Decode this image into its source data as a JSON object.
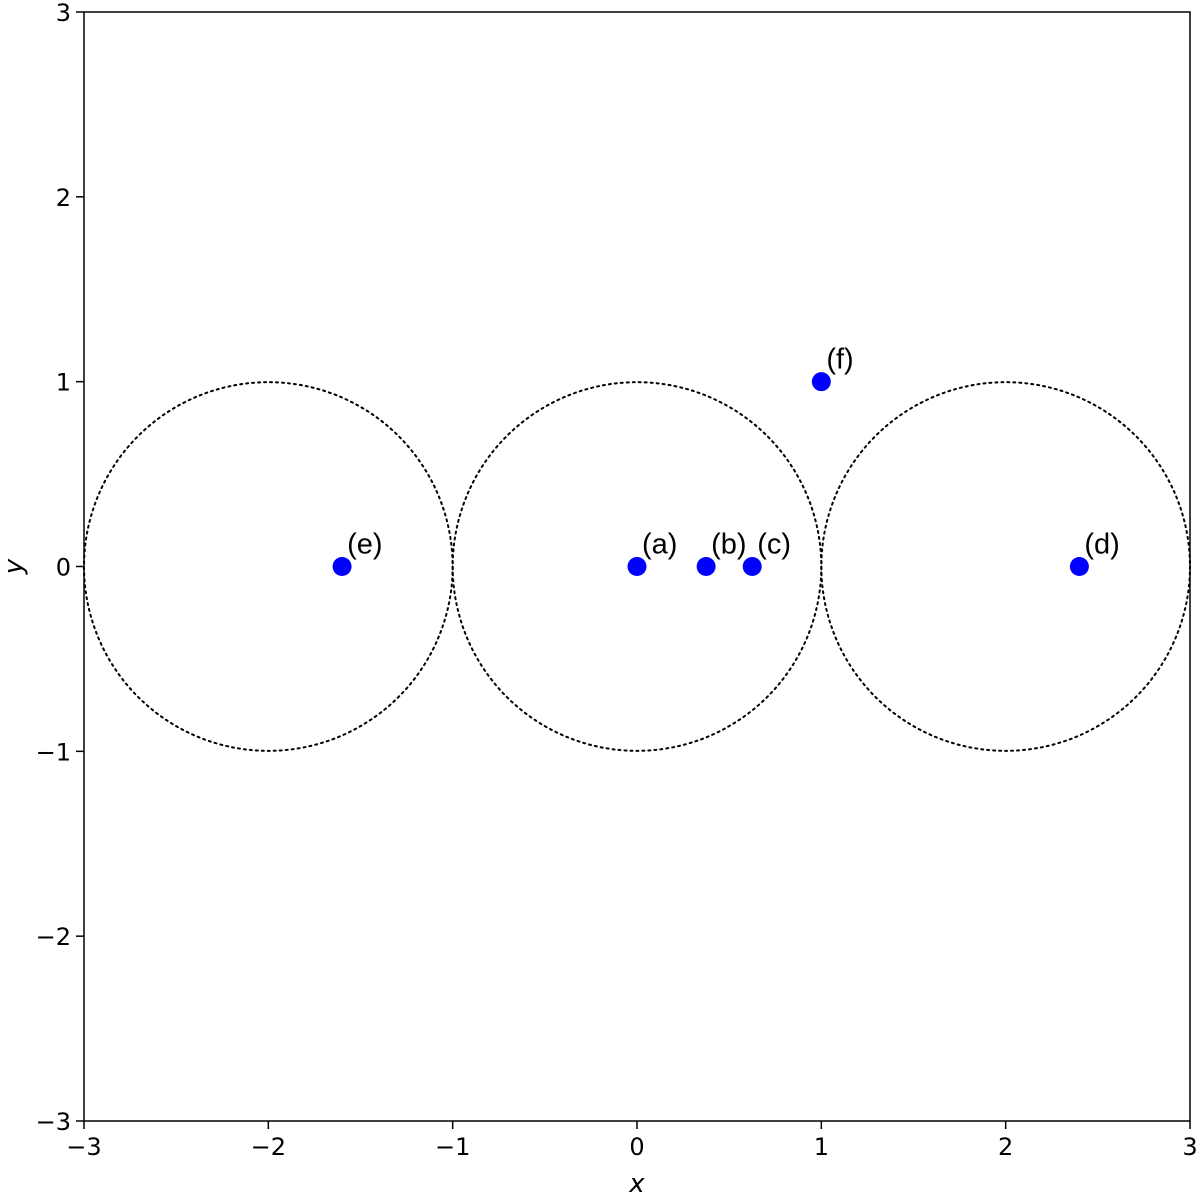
{
  "chart_data": {
    "type": "scatter",
    "xlabel": "x",
    "ylabel": "y",
    "xlim": [
      -3,
      3
    ],
    "ylim": [
      -3,
      3
    ],
    "xticks": [
      -3,
      -2,
      -1,
      0,
      1,
      2,
      3
    ],
    "yticks": [
      -3,
      -2,
      -1,
      0,
      1,
      2,
      3
    ],
    "tick_labels": {
      "x": [
        "−3",
        "−2",
        "−1",
        "0",
        "1",
        "2",
        "3"
      ],
      "y": [
        "−3",
        "−2",
        "−1",
        "0",
        "1",
        "2",
        "3"
      ]
    },
    "grid": false,
    "legend": "none",
    "marker_color": "#0000ff",
    "circle_color": "#000000",
    "circles": [
      {
        "cx": -2,
        "cy": 0,
        "r": 1,
        "style": "dotted"
      },
      {
        "cx": 0,
        "cy": 0,
        "r": 1,
        "style": "dotted"
      },
      {
        "cx": 2,
        "cy": 0,
        "r": 1,
        "style": "dotted"
      }
    ],
    "points": [
      {
        "label": "(a)",
        "x": 0,
        "y": 0
      },
      {
        "label": "(b)",
        "x": 0.375,
        "y": 0
      },
      {
        "label": "(c)",
        "x": 0.625,
        "y": 0
      },
      {
        "label": "(d)",
        "x": 2.4,
        "y": 0
      },
      {
        "label": "(e)",
        "x": -1.6,
        "y": 0
      },
      {
        "label": "(f)",
        "x": 1,
        "y": 1
      }
    ]
  }
}
